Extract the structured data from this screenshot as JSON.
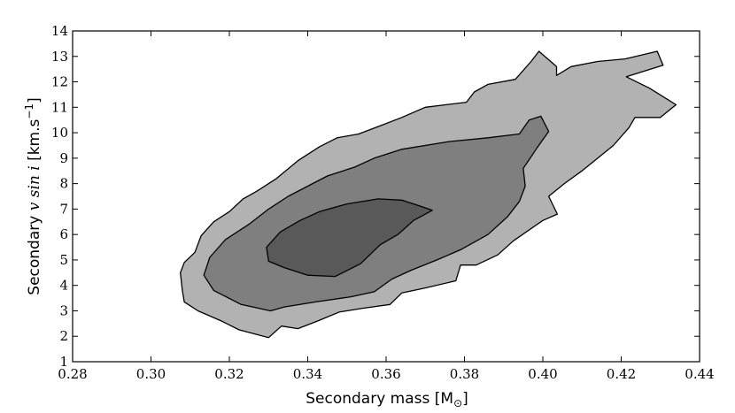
{
  "chart_data": {
    "type": "contour",
    "xlabel": "Secondary mass [M",
    "xlabel_sub": "⊙",
    "xlabel_end": "]",
    "ylabel_prefix": "Secondary ",
    "ylabel_math": "v sin i",
    "ylabel_suffix": " [km.s",
    "ylabel_sup": "−1",
    "ylabel_end": "]",
    "xlim": [
      0.28,
      0.44
    ],
    "ylim": [
      1,
      14
    ],
    "xticks": [
      0.28,
      0.3,
      0.32,
      0.34,
      0.36,
      0.38,
      0.4,
      0.42,
      0.44
    ],
    "xtick_labels": [
      "0.28",
      "0.30",
      "0.32",
      "0.34",
      "0.36",
      "0.38",
      "0.40",
      "0.42",
      "0.44"
    ],
    "yticks": [
      1,
      2,
      3,
      4,
      5,
      6,
      7,
      8,
      9,
      10,
      11,
      12,
      13,
      14
    ],
    "ytick_labels": [
      "1",
      "2",
      "3",
      "4",
      "5",
      "6",
      "7",
      "8",
      "9",
      "10",
      "11",
      "12",
      "13",
      "14"
    ],
    "grid": false,
    "levels": [
      {
        "name": "outer",
        "color": "#b2b2b2",
        "points": [
          [
            0.33,
            1.95
          ],
          [
            0.3333,
            2.4
          ],
          [
            0.3375,
            2.3
          ],
          [
            0.3425,
            2.6
          ],
          [
            0.348,
            2.95
          ],
          [
            0.354,
            3.1
          ],
          [
            0.361,
            3.25
          ],
          [
            0.364,
            3.7
          ],
          [
            0.37,
            3.9
          ],
          [
            0.3778,
            4.18
          ],
          [
            0.379,
            4.8
          ],
          [
            0.383,
            4.8
          ],
          [
            0.3885,
            5.2
          ],
          [
            0.3925,
            5.75
          ],
          [
            0.4,
            6.55
          ],
          [
            0.4037,
            6.8
          ],
          [
            0.4015,
            7.5
          ],
          [
            0.4055,
            8.0
          ],
          [
            0.41,
            8.5
          ],
          [
            0.418,
            9.5
          ],
          [
            0.422,
            10.2
          ],
          [
            0.4235,
            10.6
          ],
          [
            0.43,
            10.6
          ],
          [
            0.434,
            11.1
          ],
          [
            0.4272,
            11.75
          ],
          [
            0.4213,
            12.2
          ],
          [
            0.4307,
            12.65
          ],
          [
            0.4292,
            13.2
          ],
          [
            0.421,
            12.9
          ],
          [
            0.414,
            12.8
          ],
          [
            0.4072,
            12.6
          ],
          [
            0.4035,
            12.25
          ],
          [
            0.4035,
            12.6
          ],
          [
            0.399,
            13.2
          ],
          [
            0.397,
            12.8
          ],
          [
            0.393,
            12.1
          ],
          [
            0.386,
            11.9
          ],
          [
            0.3825,
            11.6
          ],
          [
            0.3805,
            11.2
          ],
          [
            0.37,
            11.0
          ],
          [
            0.364,
            10.6
          ],
          [
            0.359,
            10.3
          ],
          [
            0.353,
            9.95
          ],
          [
            0.3475,
            9.8
          ],
          [
            0.343,
            9.45
          ],
          [
            0.3375,
            8.9
          ],
          [
            0.332,
            8.2
          ],
          [
            0.327,
            7.7
          ],
          [
            0.3235,
            7.4
          ],
          [
            0.32,
            6.9
          ],
          [
            0.316,
            6.5
          ],
          [
            0.3128,
            5.95
          ],
          [
            0.3112,
            5.3
          ],
          [
            0.3085,
            4.9
          ],
          [
            0.3075,
            4.5
          ],
          [
            0.308,
            3.8
          ],
          [
            0.3085,
            3.35
          ],
          [
            0.312,
            3.0
          ],
          [
            0.318,
            2.6
          ],
          [
            0.3225,
            2.25
          ]
        ]
      },
      {
        "name": "middle",
        "color": "#7f7f7f",
        "points": [
          [
            0.3305,
            3.0
          ],
          [
            0.334,
            3.15
          ],
          [
            0.342,
            3.35
          ],
          [
            0.351,
            3.55
          ],
          [
            0.357,
            3.75
          ],
          [
            0.3615,
            4.25
          ],
          [
            0.3665,
            4.6
          ],
          [
            0.373,
            5.0
          ],
          [
            0.379,
            5.4
          ],
          [
            0.386,
            6.0
          ],
          [
            0.391,
            6.7
          ],
          [
            0.394,
            7.3
          ],
          [
            0.3955,
            7.9
          ],
          [
            0.395,
            8.6
          ],
          [
            0.3985,
            9.4
          ],
          [
            0.4015,
            10.05
          ],
          [
            0.3995,
            10.65
          ],
          [
            0.3965,
            10.5
          ],
          [
            0.394,
            9.95
          ],
          [
            0.386,
            9.8
          ],
          [
            0.376,
            9.65
          ],
          [
            0.364,
            9.35
          ],
          [
            0.357,
            9.0
          ],
          [
            0.352,
            8.65
          ],
          [
            0.345,
            8.3
          ],
          [
            0.34,
            7.9
          ],
          [
            0.335,
            7.5
          ],
          [
            0.33,
            7.0
          ],
          [
            0.325,
            6.4
          ],
          [
            0.319,
            5.8
          ],
          [
            0.315,
            5.1
          ],
          [
            0.3135,
            4.4
          ],
          [
            0.316,
            3.8
          ],
          [
            0.323,
            3.25
          ]
        ]
      },
      {
        "name": "inner",
        "color": "#595959",
        "points": [
          [
            0.33,
            4.95
          ],
          [
            0.334,
            4.7
          ],
          [
            0.34,
            4.4
          ],
          [
            0.347,
            4.35
          ],
          [
            0.3535,
            4.85
          ],
          [
            0.3585,
            5.6
          ],
          [
            0.363,
            6.0
          ],
          [
            0.367,
            6.55
          ],
          [
            0.3718,
            6.95
          ],
          [
            0.369,
            7.1
          ],
          [
            0.364,
            7.35
          ],
          [
            0.358,
            7.4
          ],
          [
            0.35,
            7.2
          ],
          [
            0.343,
            6.9
          ],
          [
            0.338,
            6.55
          ],
          [
            0.333,
            6.1
          ],
          [
            0.3295,
            5.5
          ]
        ]
      }
    ]
  }
}
